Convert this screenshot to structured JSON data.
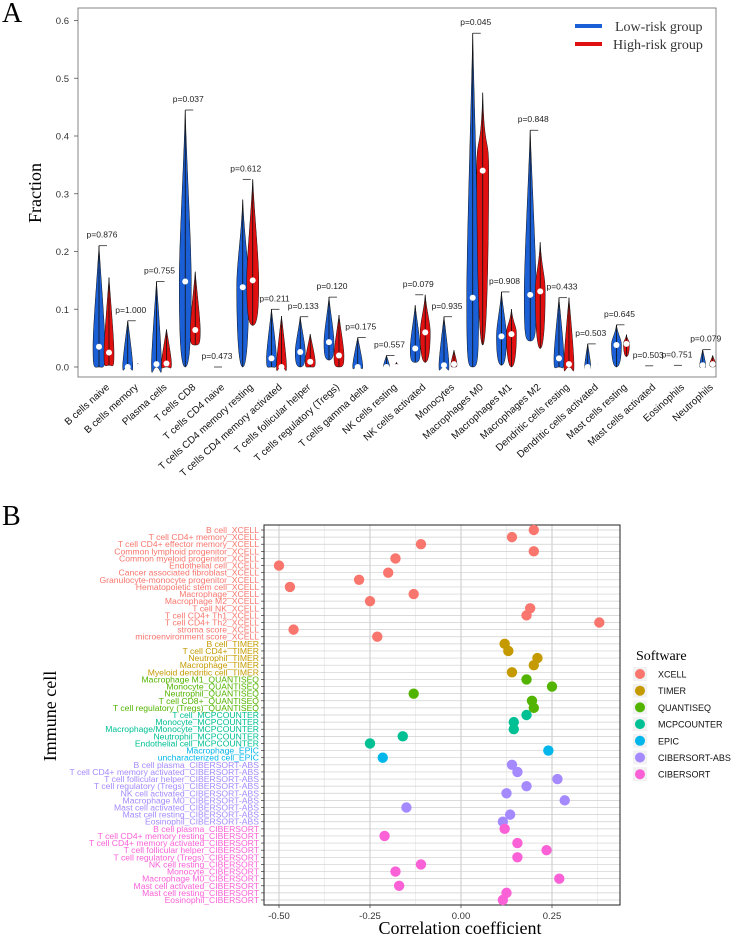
{
  "chart_data": [
    {
      "panel": "A",
      "type": "violin",
      "ylabel": "Fraction",
      "xlabel": "",
      "ylim": [
        0,
        0.62
      ],
      "yticks": [
        "0.0",
        "0.1",
        "0.2",
        "0.3",
        "0.4",
        "0.5",
        "0.6"
      ],
      "ytick_values": [
        0,
        0.1,
        0.2,
        0.3,
        0.4,
        0.5,
        0.6
      ],
      "legend": {
        "placement": "top-right",
        "entries": [
          {
            "name": "Low-risk group",
            "color": "#1a5fd6"
          },
          {
            "name": "High-risk group",
            "color": "#e01010"
          }
        ]
      },
      "categories": [
        {
          "name": "B cells naive",
          "p": "p=0.876",
          "low": {
            "min": 0,
            "max": 0.21,
            "median": 0.035
          },
          "high": {
            "min": 0.003,
            "max": 0.155,
            "median": 0.025
          }
        },
        {
          "name": "B cells memory",
          "p": "p=1.000",
          "low": {
            "min": 0,
            "max": 0.08,
            "median": 0.0
          },
          "high": {
            "min": 0,
            "max": 0.006,
            "median": 0.0
          }
        },
        {
          "name": "Plasma cells",
          "p": "p=0.755",
          "low": {
            "min": 0,
            "max": 0.148,
            "median": 0.005
          },
          "high": {
            "min": 0,
            "max": 0.065,
            "median": 0.006
          }
        },
        {
          "name": "T cells CD8",
          "p": "p=0.037",
          "low": {
            "min": 0,
            "max": 0.445,
            "median": 0.148
          },
          "high": {
            "min": 0.038,
            "max": 0.165,
            "median": 0.064
          }
        },
        {
          "name": "T cells CD4 naive",
          "p": "p=0.473",
          "low": {
            "min": 0,
            "max": 0.0,
            "median": 0.0
          },
          "high": {
            "min": 0,
            "max": 0.0,
            "median": 0.0
          }
        },
        {
          "name": "T cells CD4 memory resting",
          "p": "p=0.612",
          "low": {
            "min": 0,
            "max": 0.29,
            "median": 0.138
          },
          "high": {
            "min": 0.072,
            "max": 0.325,
            "median": 0.15
          }
        },
        {
          "name": "T cells CD4 memory activated",
          "p": "p=0.211",
          "low": {
            "min": 0,
            "max": 0.1,
            "median": 0.015
          },
          "high": {
            "min": 0,
            "max": 0.088,
            "median": 0.0
          }
        },
        {
          "name": "T cells follicular helper",
          "p": "p=0.133",
          "low": {
            "min": 0,
            "max": 0.087,
            "median": 0.026
          },
          "high": {
            "min": 0,
            "max": 0.057,
            "median": 0.009
          }
        },
        {
          "name": "T cells regulatory (Tregs)",
          "p": "p=0.120",
          "low": {
            "min": 0.012,
            "max": 0.121,
            "median": 0.043
          },
          "high": {
            "min": 0,
            "max": 0.09,
            "median": 0.02
          }
        },
        {
          "name": "T cells gamma delta",
          "p": "p=0.175",
          "low": {
            "min": 0,
            "max": 0.051,
            "median": 0.0
          },
          "high": {
            "min": 0,
            "max": 0.002,
            "median": 0.0
          }
        },
        {
          "name": "NK cells resting",
          "p": "p=0.557",
          "low": {
            "min": 0,
            "max": 0.02,
            "median": 0.0
          },
          "high": {
            "min": 0,
            "max": 0.008,
            "median": 0.0
          }
        },
        {
          "name": "NK cells activated",
          "p": "p=0.079",
          "low": {
            "min": 0.008,
            "max": 0.107,
            "median": 0.032
          },
          "high": {
            "min": 0.008,
            "max": 0.125,
            "median": 0.06
          }
        },
        {
          "name": "Monocytes",
          "p": "p=0.935",
          "low": {
            "min": 0,
            "max": 0.087,
            "median": 0.003
          },
          "high": {
            "min": 0,
            "max": 0.029,
            "median": 0.005
          }
        },
        {
          "name": "Macrophages M0",
          "p": "p=0.045",
          "low": {
            "min": 0,
            "max": 0.578,
            "median": 0.12
          },
          "high": {
            "min": 0.038,
            "max": 0.475,
            "median": 0.34
          }
        },
        {
          "name": "Macrophages M1",
          "p": "p=0.908",
          "low": {
            "min": 0.003,
            "max": 0.13,
            "median": 0.053
          },
          "high": {
            "min": 0,
            "max": 0.1,
            "median": 0.057
          }
        },
        {
          "name": "Macrophages M2",
          "p": "p=0.848",
          "low": {
            "min": 0.045,
            "max": 0.41,
            "median": 0.125
          },
          "high": {
            "min": 0.032,
            "max": 0.216,
            "median": 0.131
          }
        },
        {
          "name": "Dendritic cells resting",
          "p": "p=0.433",
          "low": {
            "min": 0,
            "max": 0.12,
            "median": 0.015
          },
          "high": {
            "min": 0,
            "max": 0.12,
            "median": 0.005
          }
        },
        {
          "name": "Dendritic cells activated",
          "p": "p=0.503",
          "low": {
            "min": 0,
            "max": 0.04,
            "median": 0.0
          },
          "high": {
            "min": 0,
            "max": 0.005,
            "median": 0.0
          }
        },
        {
          "name": "Mast cells resting",
          "p": "p=0.645",
          "low": {
            "min": 0,
            "max": 0.073,
            "median": 0.038
          },
          "high": {
            "min": 0.018,
            "max": 0.056,
            "median": 0.04
          }
        },
        {
          "name": "Mast cells activated",
          "p": "p=0.503",
          "low": {
            "min": 0,
            "max": 0.002,
            "median": 0.0
          },
          "high": {
            "min": 0,
            "max": 0.002,
            "median": 0.0
          }
        },
        {
          "name": "Eosinophils",
          "p": "p=0.751",
          "low": {
            "min": 0,
            "max": 0.002,
            "median": 0.0
          },
          "high": {
            "min": 0,
            "max": 0.003,
            "median": 0.0
          }
        },
        {
          "name": "Neutrophils",
          "p": "p=0.079",
          "low": {
            "min": 0,
            "max": 0.03,
            "median": 0.003
          },
          "high": {
            "min": 0,
            "max": 0.02,
            "median": 0.005
          }
        }
      ]
    },
    {
      "panel": "B",
      "type": "scatter",
      "xlabel": "Correlation coefficient",
      "ylabel": "Immune cell",
      "xlim": [
        -0.53,
        0.42
      ],
      "xticks": [
        "-0.50",
        "-0.25",
        "0.00",
        "0.25"
      ],
      "xtick_values": [
        -0.5,
        -0.25,
        0,
        0.25
      ],
      "grid": true,
      "legend": {
        "title": "Software",
        "placement": "right",
        "entries": [
          {
            "name": "XCELL",
            "color": "#f8766d"
          },
          {
            "name": "TIMER",
            "color": "#c49a00"
          },
          {
            "name": "QUANTISEQ",
            "color": "#53b400"
          },
          {
            "name": "MCPCOUNTER",
            "color": "#00c094"
          },
          {
            "name": "EPIC",
            "color": "#00b6eb"
          },
          {
            "name": "CIBERSORT-ABS",
            "color": "#a58aff"
          },
          {
            "name": "CIBERSORT",
            "color": "#fb61d7"
          }
        ]
      },
      "points": [
        {
          "label": "B cell_XCELL",
          "software": "XCELL",
          "r": 0.2
        },
        {
          "label": "T cell CD4+ memory_XCELL",
          "software": "XCELL",
          "r": 0.14
        },
        {
          "label": "T cell CD4+ effector memory_XCELL",
          "software": "XCELL",
          "r": -0.11
        },
        {
          "label": "Common lymphoid progenitor_XCELL",
          "software": "XCELL",
          "r": 0.2
        },
        {
          "label": "Common myeloid progenitor_XCELL",
          "software": "XCELL",
          "r": -0.18
        },
        {
          "label": "Endothelial cell_XCELL",
          "software": "XCELL",
          "r": -0.5
        },
        {
          "label": "Cancer associated fibroblast_XCELL",
          "software": "XCELL",
          "r": -0.2
        },
        {
          "label": "Granulocyte-monocyte progenitor_XCELL",
          "software": "XCELL",
          "r": -0.28
        },
        {
          "label": "Hematopoietic stem cell_XCELL",
          "software": "XCELL",
          "r": -0.47
        },
        {
          "label": "Macrophage_XCELL",
          "software": "XCELL",
          "r": -0.13
        },
        {
          "label": "Macrophage M2_XCELL",
          "software": "XCELL",
          "r": -0.25
        },
        {
          "label": "T cell NK_XCELL",
          "software": "XCELL",
          "r": 0.19
        },
        {
          "label": "T cell CD4+ Th1_XCELL",
          "software": "XCELL",
          "r": 0.18
        },
        {
          "label": "T cell CD4+ Th2_XCELL",
          "software": "XCELL",
          "r": 0.38
        },
        {
          "label": "stroma score_XCELL",
          "software": "XCELL",
          "r": -0.46
        },
        {
          "label": "microenvironment score_XCELL",
          "software": "XCELL",
          "r": -0.23
        },
        {
          "label": "B cell_TIMER",
          "software": "TIMER",
          "r": 0.12
        },
        {
          "label": "T cell CD4+_TIMER",
          "software": "TIMER",
          "r": 0.13
        },
        {
          "label": "Neutrophil_TIMER",
          "software": "TIMER",
          "r": 0.21
        },
        {
          "label": "Macrophage_TIMER",
          "software": "TIMER",
          "r": 0.2
        },
        {
          "label": "Myeloid dendritic cell_TIMER",
          "software": "TIMER",
          "r": 0.14
        },
        {
          "label": "Macrophage M1_QUANTISEQ",
          "software": "QUANTISEQ",
          "r": 0.18
        },
        {
          "label": "Monocyte_QUANTISEQ",
          "software": "QUANTISEQ",
          "r": 0.25
        },
        {
          "label": "Neutrophil_QUANTISEQ",
          "software": "QUANTISEQ",
          "r": -0.13
        },
        {
          "label": "T cell CD8+_QUANTISEQ",
          "software": "QUANTISEQ",
          "r": 0.195
        },
        {
          "label": "T cell regulatory (Tregs)_QUANTISEQ",
          "software": "QUANTISEQ",
          "r": 0.2
        },
        {
          "label": "T cell_MCPCOUNTER",
          "software": "MCPCOUNTER",
          "r": 0.18
        },
        {
          "label": "Monocyte_MCPCOUNTER",
          "software": "MCPCOUNTER",
          "r": 0.145
        },
        {
          "label": "Macrophage/Monocyte_MCPCOUNTER",
          "software": "MCPCOUNTER",
          "r": 0.145
        },
        {
          "label": "Neutrophil_MCPCOUNTER",
          "software": "MCPCOUNTER",
          "r": -0.16
        },
        {
          "label": "Endothelial cell_MCPCOUNTER",
          "software": "MCPCOUNTER",
          "r": -0.25
        },
        {
          "label": "Macrophage_EPIC",
          "software": "EPIC",
          "r": 0.24
        },
        {
          "label": "uncharacterized cell_EPIC",
          "software": "EPIC",
          "r": -0.215
        },
        {
          "label": "B cell plasma_CIBERSORT-ABS",
          "software": "CIBERSORT-ABS",
          "r": 0.14
        },
        {
          "label": "T cell CD4+ memory activated_CIBERSORT-ABS",
          "software": "CIBERSORT-ABS",
          "r": 0.155
        },
        {
          "label": "T cell follicular helper_CIBERSORT-ABS",
          "software": "CIBERSORT-ABS",
          "r": 0.265
        },
        {
          "label": "T cell regulatory (Tregs)_CIBERSORT-ABS",
          "software": "CIBERSORT-ABS",
          "r": 0.18
        },
        {
          "label": "NK cell activated_CIBERSORT-ABS",
          "software": "CIBERSORT-ABS",
          "r": 0.125
        },
        {
          "label": "Macrophage M0_CIBERSORT-ABS",
          "software": "CIBERSORT-ABS",
          "r": 0.285
        },
        {
          "label": "Mast cell activated_CIBERSORT-ABS",
          "software": "CIBERSORT-ABS",
          "r": -0.15
        },
        {
          "label": "Mast cell resting_CIBERSORT-ABS",
          "software": "CIBERSORT-ABS",
          "r": 0.135
        },
        {
          "label": "Eosinophil_CIBERSORT-ABS",
          "software": "CIBERSORT-ABS",
          "r": 0.115
        },
        {
          "label": "B cell plasma_CIBERSORT",
          "software": "CIBERSORT",
          "r": 0.12
        },
        {
          "label": "T cell CD4+ memory resting_CIBERSORT",
          "software": "CIBERSORT",
          "r": -0.21
        },
        {
          "label": "T cell CD4+ memory activated_CIBERSORT",
          "software": "CIBERSORT",
          "r": 0.155
        },
        {
          "label": "T cell follicular helper_CIBERSORT",
          "software": "CIBERSORT",
          "r": 0.235
        },
        {
          "label": "T cell regulatory (Tregs)_CIBERSORT",
          "software": "CIBERSORT",
          "r": 0.155
        },
        {
          "label": "NK cell resting_CIBERSORT",
          "software": "CIBERSORT",
          "r": -0.11
        },
        {
          "label": "Monocyte_CIBERSORT",
          "software": "CIBERSORT",
          "r": -0.18
        },
        {
          "label": "Macrophage M0_CIBERSORT",
          "software": "CIBERSORT",
          "r": 0.27
        },
        {
          "label": "Mast cell activated_CIBERSORT",
          "software": "CIBERSORT",
          "r": -0.17
        },
        {
          "label": "Mast cell resting_CIBERSORT",
          "software": "CIBERSORT",
          "r": 0.125
        },
        {
          "label": "Eosinophil_CIBERSORT",
          "software": "CIBERSORT",
          "r": 0.115
        }
      ]
    }
  ],
  "panels": {
    "a_letter": "A",
    "b_letter": "B"
  }
}
